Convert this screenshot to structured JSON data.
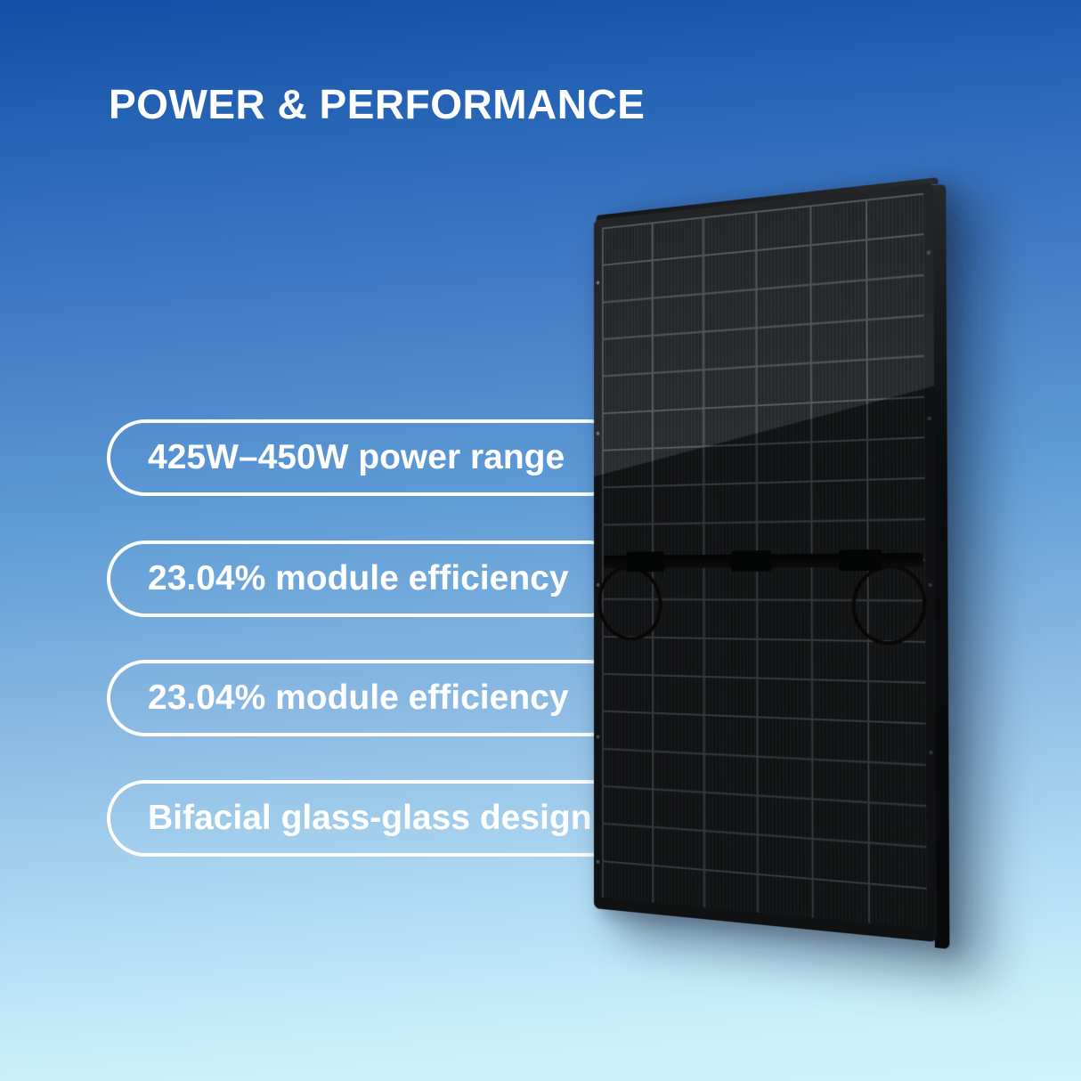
{
  "header": {
    "title": "POWER & PERFORMANCE"
  },
  "features": [
    {
      "label": "425W–450W power range"
    },
    {
      "label": "23.04% module efficiency"
    },
    {
      "label": "23.04% module efficiency"
    },
    {
      "label": "Bifacial glass-glass design"
    }
  ],
  "panel": {
    "type": "all-black-solar-panel",
    "cell_columns": 6,
    "cell_rows": 18
  },
  "colors": {
    "background_top": "#124fa5",
    "background_middle": "#5f9cd6",
    "background_bottom": "#d2f2fd",
    "text": "#ffffff",
    "pill_border": "#ffffff",
    "panel_frame": "#17181a",
    "cell_gap": "#4b5054"
  }
}
